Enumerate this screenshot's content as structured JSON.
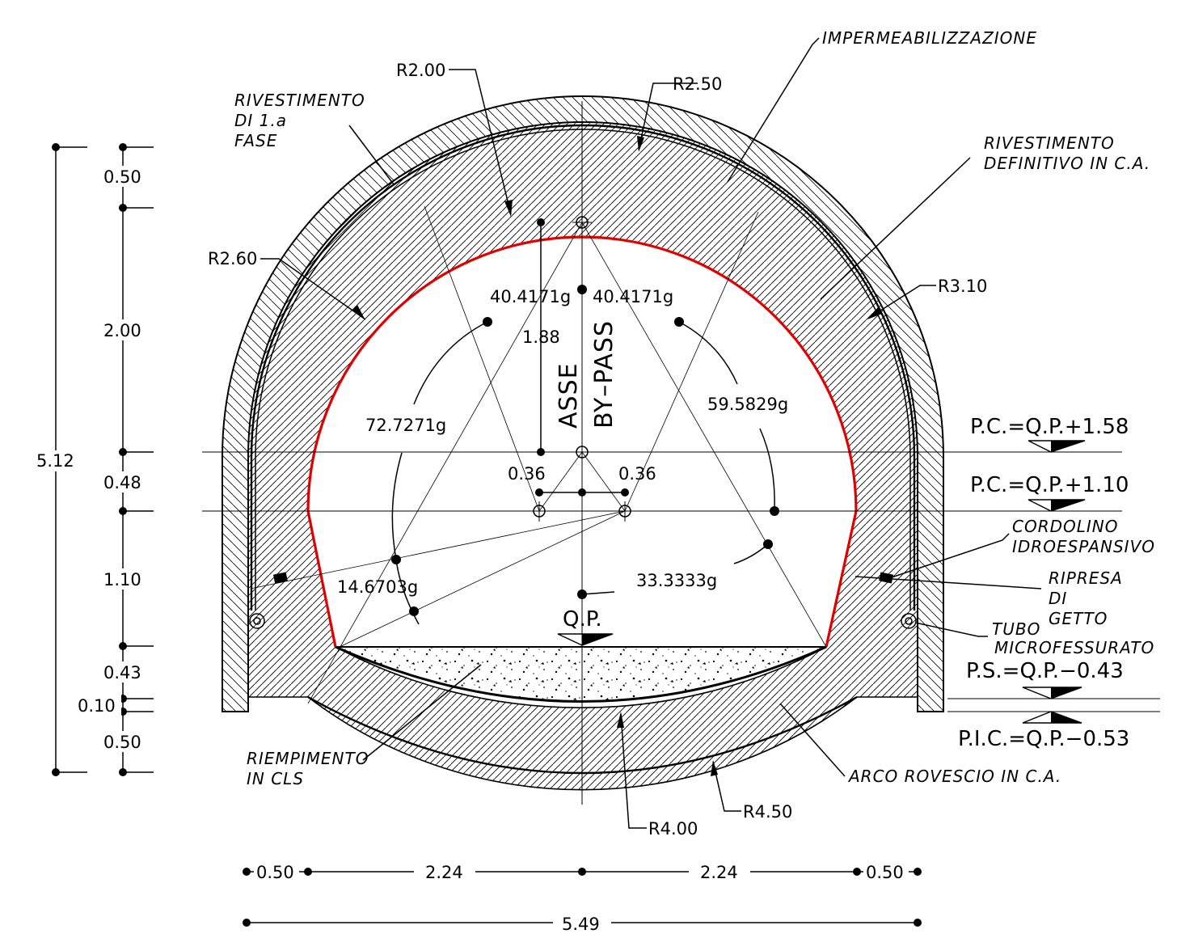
{
  "colors": {
    "lines": "#000000",
    "intrados": "#e00000",
    "background": "#ffffff"
  },
  "labels": {
    "impermeabilizzazione": "IMPERMEABILIZZAZIONE",
    "rivestimento_1a_fase": [
      "RIVESTIMENTO",
      "DI  1.a",
      "FASE"
    ],
    "rivestimento_definitivo": [
      "RIVESTIMENTO",
      "DEFINITIVO  IN  C.A."
    ],
    "cordolino": [
      "CORDOLINO",
      "IDROESPANSIVO"
    ],
    "ripresa": [
      "RIPRESA",
      "DI",
      "GETTO"
    ],
    "tubo": [
      "TUBO",
      "MICROFESSURATO"
    ],
    "riempimento": [
      "RIEMPIMENTO",
      "IN  CLS"
    ],
    "arco_rovescio": "ARCO  ROVESCIO  IN  C.A.",
    "asse": [
      "ASSE",
      "BY–PASS"
    ],
    "qp": "Q.P."
  },
  "radii": {
    "r2_00": "R2.00",
    "r2_50": "R2.50",
    "r2_60": "R2.60",
    "r3_10": "R3.10",
    "r4_00": "R4.00",
    "r4_50": "R4.50"
  },
  "angles": {
    "a_left_top": "40.4171g",
    "a_right_top": "40.4171g",
    "a_left": "72.7271g",
    "a_right": "59.5829g",
    "a_low_left": "14.6703g",
    "a_low_right": "33.3333g"
  },
  "center_dims": {
    "h188": "1.88",
    "off_left": "0.36",
    "off_right": "0.36"
  },
  "levels": {
    "pc1": "P.C.=Q.P.+1.58",
    "pc2": "P.C.=Q.P.+1.10",
    "ps": "P.S.=Q.P.−0.43",
    "pic": "P.I.C.=Q.P.−0.53"
  },
  "vertical_dims": {
    "total": "5.12",
    "segments": [
      "0.50",
      "2.00",
      "0.48",
      "1.10",
      "0.43",
      "0.10",
      "0.50"
    ]
  },
  "horizontal_dims": {
    "segments": [
      "0.50",
      "2.24",
      "2.24",
      "0.50"
    ],
    "total": "5.49"
  }
}
